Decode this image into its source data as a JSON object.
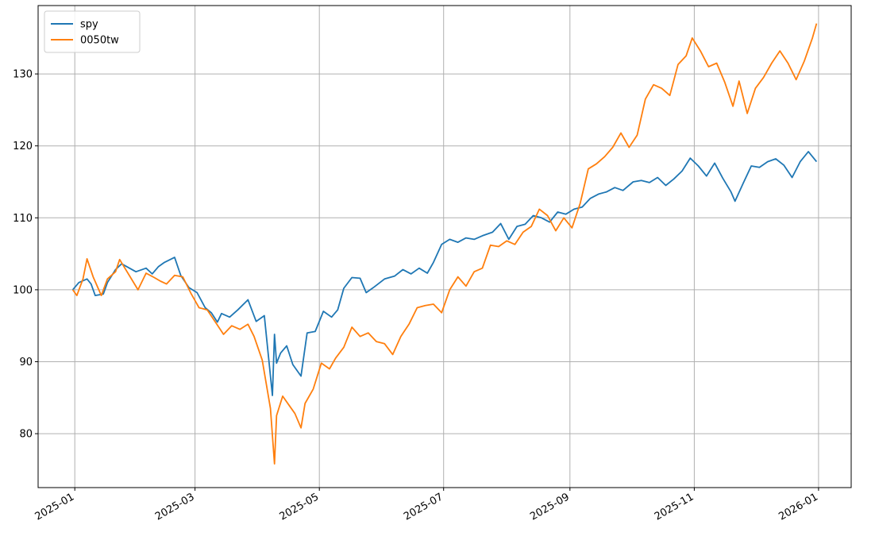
{
  "chart_data": {
    "type": "line",
    "title": "",
    "xlabel": "",
    "ylabel": "",
    "x_ticks": [
      "2025-01",
      "2025-03",
      "2025-05",
      "2025-07",
      "2025-09",
      "2025-11",
      "2026-01"
    ],
    "y_ticks": [
      80,
      90,
      100,
      110,
      120,
      130
    ],
    "xlim": [
      "2024-12-14",
      "2026-01-17"
    ],
    "ylim": [
      72.5,
      139.5
    ],
    "grid": true,
    "legend": "top-left",
    "series": [
      {
        "name": "spy",
        "color": "#1f77b4",
        "points": [
          [
            "2024-12-31",
            100.0
          ],
          [
            "2025-01-03",
            101.0
          ],
          [
            "2025-01-07",
            101.5
          ],
          [
            "2025-01-09",
            100.8
          ],
          [
            "2025-01-11",
            99.2
          ],
          [
            "2025-01-15",
            99.4
          ],
          [
            "2025-01-17",
            101.0
          ],
          [
            "2025-01-21",
            102.8
          ],
          [
            "2025-01-24",
            103.6
          ],
          [
            "2025-01-31",
            102.5
          ],
          [
            "2025-02-05",
            103.0
          ],
          [
            "2025-02-08",
            102.2
          ],
          [
            "2025-02-11",
            103.2
          ],
          [
            "2025-02-14",
            103.8
          ],
          [
            "2025-02-19",
            104.5
          ],
          [
            "2025-02-22",
            102.0
          ],
          [
            "2025-02-26",
            100.3
          ],
          [
            "2025-03-02",
            99.6
          ],
          [
            "2025-03-06",
            97.5
          ],
          [
            "2025-03-09",
            96.8
          ],
          [
            "2025-03-12",
            95.5
          ],
          [
            "2025-03-14",
            96.7
          ],
          [
            "2025-03-18",
            96.2
          ],
          [
            "2025-03-22",
            97.2
          ],
          [
            "2025-03-27",
            98.6
          ],
          [
            "2025-03-31",
            95.6
          ],
          [
            "2025-04-04",
            96.4
          ],
          [
            "2025-04-08",
            85.3
          ],
          [
            "2025-04-09",
            93.8
          ],
          [
            "2025-04-10",
            89.8
          ],
          [
            "2025-04-12",
            91.2
          ],
          [
            "2025-04-15",
            92.2
          ],
          [
            "2025-04-18",
            89.6
          ],
          [
            "2025-04-22",
            88.0
          ],
          [
            "2025-04-25",
            94.0
          ],
          [
            "2025-04-29",
            94.2
          ],
          [
            "2025-05-03",
            97.0
          ],
          [
            "2025-05-07",
            96.2
          ],
          [
            "2025-05-10",
            97.2
          ],
          [
            "2025-05-13",
            100.2
          ],
          [
            "2025-05-17",
            101.7
          ],
          [
            "2025-05-21",
            101.6
          ],
          [
            "2025-05-24",
            99.6
          ],
          [
            "2025-05-28",
            100.4
          ],
          [
            "2025-06-02",
            101.5
          ],
          [
            "2025-06-07",
            101.9
          ],
          [
            "2025-06-11",
            102.8
          ],
          [
            "2025-06-15",
            102.2
          ],
          [
            "2025-06-19",
            103.0
          ],
          [
            "2025-06-23",
            102.3
          ],
          [
            "2025-06-26",
            103.8
          ],
          [
            "2025-06-30",
            106.3
          ],
          [
            "2025-07-04",
            107.0
          ],
          [
            "2025-07-08",
            106.6
          ],
          [
            "2025-07-12",
            107.2
          ],
          [
            "2025-07-16",
            107.0
          ],
          [
            "2025-07-20",
            107.5
          ],
          [
            "2025-07-25",
            108.0
          ],
          [
            "2025-07-29",
            109.2
          ],
          [
            "2025-08-02",
            107.0
          ],
          [
            "2025-08-06",
            108.8
          ],
          [
            "2025-08-10",
            109.1
          ],
          [
            "2025-08-14",
            110.3
          ],
          [
            "2025-08-18",
            110.0
          ],
          [
            "2025-08-22",
            109.4
          ],
          [
            "2025-08-26",
            110.8
          ],
          [
            "2025-08-30",
            110.5
          ],
          [
            "2025-09-03",
            111.2
          ],
          [
            "2025-09-07",
            111.5
          ],
          [
            "2025-09-11",
            112.7
          ],
          [
            "2025-09-15",
            113.3
          ],
          [
            "2025-09-19",
            113.6
          ],
          [
            "2025-09-23",
            114.2
          ],
          [
            "2025-09-27",
            113.8
          ],
          [
            "2025-10-02",
            115.0
          ],
          [
            "2025-10-06",
            115.2
          ],
          [
            "2025-10-10",
            114.9
          ],
          [
            "2025-10-14",
            115.6
          ],
          [
            "2025-10-18",
            114.5
          ],
          [
            "2025-10-22",
            115.4
          ],
          [
            "2025-10-26",
            116.5
          ],
          [
            "2025-10-30",
            118.3
          ],
          [
            "2025-11-03",
            117.2
          ],
          [
            "2025-11-07",
            115.8
          ],
          [
            "2025-11-11",
            117.6
          ],
          [
            "2025-11-15",
            115.5
          ],
          [
            "2025-11-19",
            113.6
          ],
          [
            "2025-11-21",
            112.3
          ],
          [
            "2025-11-25",
            114.8
          ],
          [
            "2025-11-29",
            117.2
          ],
          [
            "2025-12-03",
            117.0
          ],
          [
            "2025-12-07",
            117.8
          ],
          [
            "2025-12-11",
            118.2
          ],
          [
            "2025-12-15",
            117.3
          ],
          [
            "2025-12-19",
            115.6
          ],
          [
            "2025-12-23",
            117.8
          ],
          [
            "2025-12-27",
            119.2
          ],
          [
            "2025-12-31",
            117.8
          ]
        ]
      },
      {
        "name": "0050tw",
        "color": "#ff7f0e",
        "points": [
          [
            "2024-12-31",
            100.0
          ],
          [
            "2025-01-02",
            99.2
          ],
          [
            "2025-01-05",
            101.5
          ],
          [
            "2025-01-07",
            104.3
          ],
          [
            "2025-01-10",
            101.8
          ],
          [
            "2025-01-14",
            99.2
          ],
          [
            "2025-01-17",
            101.5
          ],
          [
            "2025-01-21",
            102.5
          ],
          [
            "2025-01-23",
            104.2
          ],
          [
            "2025-02-01",
            100.0
          ],
          [
            "2025-02-05",
            102.3
          ],
          [
            "2025-02-09",
            101.7
          ],
          [
            "2025-02-12",
            101.2
          ],
          [
            "2025-02-15",
            100.8
          ],
          [
            "2025-02-19",
            102.0
          ],
          [
            "2025-02-23",
            101.8
          ],
          [
            "2025-02-27",
            99.5
          ],
          [
            "2025-03-03",
            97.5
          ],
          [
            "2025-03-07",
            97.2
          ],
          [
            "2025-03-11",
            95.5
          ],
          [
            "2025-03-15",
            93.8
          ],
          [
            "2025-03-19",
            95.0
          ],
          [
            "2025-03-23",
            94.5
          ],
          [
            "2025-03-27",
            95.2
          ],
          [
            "2025-03-30",
            93.5
          ],
          [
            "2025-04-03",
            90.2
          ],
          [
            "2025-04-07",
            83.5
          ],
          [
            "2025-04-09",
            75.8
          ],
          [
            "2025-04-10",
            82.5
          ],
          [
            "2025-04-13",
            85.2
          ],
          [
            "2025-04-16",
            84.0
          ],
          [
            "2025-04-19",
            82.8
          ],
          [
            "2025-04-22",
            80.8
          ],
          [
            "2025-04-24",
            84.2
          ],
          [
            "2025-04-28",
            86.2
          ],
          [
            "2025-05-02",
            89.8
          ],
          [
            "2025-05-06",
            89.0
          ],
          [
            "2025-05-09",
            90.5
          ],
          [
            "2025-05-13",
            92.0
          ],
          [
            "2025-05-17",
            94.8
          ],
          [
            "2025-05-21",
            93.5
          ],
          [
            "2025-05-25",
            94.0
          ],
          [
            "2025-05-29",
            92.8
          ],
          [
            "2025-06-02",
            92.5
          ],
          [
            "2025-06-06",
            91.0
          ],
          [
            "2025-06-10",
            93.5
          ],
          [
            "2025-06-14",
            95.2
          ],
          [
            "2025-06-18",
            97.5
          ],
          [
            "2025-06-22",
            97.8
          ],
          [
            "2025-06-26",
            98.0
          ],
          [
            "2025-06-30",
            96.8
          ],
          [
            "2025-07-04",
            100.0
          ],
          [
            "2025-07-08",
            101.8
          ],
          [
            "2025-07-12",
            100.5
          ],
          [
            "2025-07-16",
            102.5
          ],
          [
            "2025-07-20",
            103.0
          ],
          [
            "2025-07-24",
            106.2
          ],
          [
            "2025-07-28",
            106.0
          ],
          [
            "2025-08-01",
            106.8
          ],
          [
            "2025-08-05",
            106.3
          ],
          [
            "2025-08-09",
            108.0
          ],
          [
            "2025-08-13",
            108.8
          ],
          [
            "2025-08-17",
            111.2
          ],
          [
            "2025-08-21",
            110.3
          ],
          [
            "2025-08-25",
            108.2
          ],
          [
            "2025-08-29",
            110.0
          ],
          [
            "2025-09-02",
            108.6
          ],
          [
            "2025-09-06",
            112.0
          ],
          [
            "2025-09-10",
            116.8
          ],
          [
            "2025-09-14",
            117.5
          ],
          [
            "2025-09-18",
            118.5
          ],
          [
            "2025-09-22",
            119.8
          ],
          [
            "2025-09-26",
            121.8
          ],
          [
            "2025-09-30",
            119.8
          ],
          [
            "2025-10-04",
            121.5
          ],
          [
            "2025-10-08",
            126.5
          ],
          [
            "2025-10-12",
            128.5
          ],
          [
            "2025-10-16",
            128.0
          ],
          [
            "2025-10-20",
            127.0
          ],
          [
            "2025-10-24",
            131.3
          ],
          [
            "2025-10-28",
            132.5
          ],
          [
            "2025-10-31",
            135.0
          ],
          [
            "2025-11-04",
            133.2
          ],
          [
            "2025-11-08",
            131.0
          ],
          [
            "2025-11-12",
            131.5
          ],
          [
            "2025-11-16",
            128.8
          ],
          [
            "2025-11-20",
            125.5
          ],
          [
            "2025-11-23",
            129.0
          ],
          [
            "2025-11-27",
            124.5
          ],
          [
            "2025-12-01",
            128.0
          ],
          [
            "2025-12-05",
            129.5
          ],
          [
            "2025-12-09",
            131.5
          ],
          [
            "2025-12-13",
            133.2
          ],
          [
            "2025-12-17",
            131.5
          ],
          [
            "2025-12-21",
            129.2
          ],
          [
            "2025-12-25",
            131.8
          ],
          [
            "2025-12-29",
            135.0
          ],
          [
            "2025-12-31",
            137.0
          ]
        ]
      }
    ]
  }
}
